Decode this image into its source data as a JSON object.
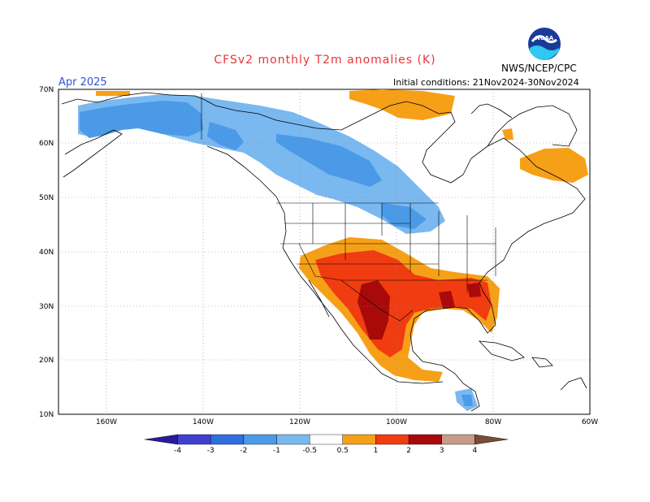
{
  "title": "CFSv2 monthly T2m anomalies (K)",
  "valid_month": "Apr 2025",
  "initial_conditions": "Initial conditions: 21Nov2024-30Nov2024",
  "agency": "NWS/NCEP/CPC",
  "logo_text": "NOAA",
  "axes": {
    "lat_labels": [
      "70N",
      "60N",
      "50N",
      "40N",
      "30N",
      "20N",
      "10N"
    ],
    "lon_labels": [
      "160W",
      "140W",
      "120W",
      "100W",
      "80W",
      "60W"
    ]
  },
  "colorbar": {
    "labels": [
      "-4",
      "-3",
      "-2",
      "-1",
      "-0.5",
      "0.5",
      "1",
      "2",
      "3",
      "4"
    ],
    "colors": [
      "#2a1a9a",
      "#4040d0",
      "#2f6fe0",
      "#4a9ae8",
      "#7ab8f0",
      "#ffffff",
      "#f6a018",
      "#f03c10",
      "#a80a0a",
      "#c89a88",
      "#7a4a3a"
    ]
  },
  "colors": {
    "land_outline": "#000000",
    "grid": "#888888",
    "cold_weak": "#7ab8f0",
    "cold_mid": "#4a9ae8",
    "warm_weak": "#f6a018",
    "warm_mid": "#f03c10",
    "warm_strong": "#a80a0a"
  }
}
